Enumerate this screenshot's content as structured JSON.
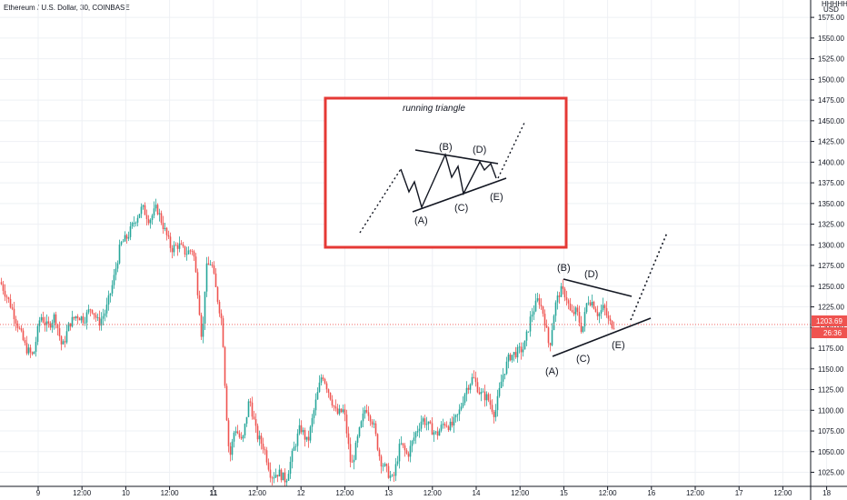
{
  "header": {
    "symbol_line": "Ethereum / U.S. Dollar, 30, COINBASE",
    "currency_top": "HHHHHD",
    "currency": "USD"
  },
  "colors": {
    "up": "#26a69a",
    "down": "#ef5350",
    "price_line": "#ef5350",
    "box": "#e53935",
    "grid": "#eef0f4"
  },
  "chart_data": {
    "type": "candlestick",
    "y_ticks": [
      1575,
      1550,
      1525,
      1500,
      1475,
      1450,
      1425,
      1400,
      1375,
      1350,
      1325,
      1300,
      1275,
      1250,
      1225,
      1200,
      1175,
      1150,
      1125,
      1100,
      1075,
      1050,
      1025
    ],
    "y_tick_labels": [
      "1575.00",
      "1550.00",
      "1525.00",
      "1500.00",
      "1475.00",
      "1450.00",
      "1425.00",
      "1400.00",
      "1375.00",
      "1350.00",
      "1325.00",
      "1300.00",
      "1275.00",
      "1250.00",
      "1225.00",
      "1200.00",
      "1175.00",
      "1150.00",
      "1125.00",
      "1100.00",
      "1075.00",
      "1050.00",
      "1025.00"
    ],
    "ylim": [
      1008,
      1596
    ],
    "x_ticks": [
      "9",
      "12:00",
      "10",
      "12:00",
      "11",
      "12:00",
      "12",
      "12:00",
      "13",
      "12:00",
      "14",
      "12:00",
      "15",
      "12:00",
      "16",
      "12:00",
      "17",
      "12:00",
      "18"
    ],
    "current_price": "1203.69",
    "countdown": "26:36",
    "price_path": [
      [
        0,
        1255
      ],
      [
        12,
        1225
      ],
      [
        20,
        1200
      ],
      [
        28,
        1175
      ],
      [
        36,
        1165
      ],
      [
        44,
        1215
      ],
      [
        52,
        1200
      ],
      [
        60,
        1215
      ],
      [
        68,
        1175
      ],
      [
        76,
        1205
      ],
      [
        84,
        1215
      ],
      [
        92,
        1210
      ],
      [
        100,
        1225
      ],
      [
        108,
        1205
      ],
      [
        116,
        1220
      ],
      [
        124,
        1255
      ],
      [
        132,
        1300
      ],
      [
        140,
        1310
      ],
      [
        148,
        1330
      ],
      [
        156,
        1345
      ],
      [
        164,
        1330
      ],
      [
        172,
        1345
      ],
      [
        180,
        1320
      ],
      [
        188,
        1295
      ],
      [
        196,
        1300
      ],
      [
        204,
        1290
      ],
      [
        212,
        1295
      ],
      [
        218,
        1235
      ],
      [
        222,
        1180
      ],
      [
        226,
        1270
      ],
      [
        232,
        1280
      ],
      [
        238,
        1240
      ],
      [
        244,
        1205
      ],
      [
        248,
        1110
      ],
      [
        252,
        1040
      ],
      [
        258,
        1080
      ],
      [
        266,
        1060
      ],
      [
        274,
        1115
      ],
      [
        282,
        1070
      ],
      [
        290,
        1055
      ],
      [
        298,
        1020
      ],
      [
        306,
        1025
      ],
      [
        314,
        1015
      ],
      [
        322,
        1050
      ],
      [
        330,
        1080
      ],
      [
        338,
        1060
      ],
      [
        346,
        1105
      ],
      [
        354,
        1145
      ],
      [
        362,
        1120
      ],
      [
        370,
        1095
      ],
      [
        378,
        1100
      ],
      [
        386,
        1030
      ],
      [
        394,
        1070
      ],
      [
        402,
        1105
      ],
      [
        410,
        1085
      ],
      [
        418,
        1040
      ],
      [
        426,
        1025
      ],
      [
        432,
        1015
      ],
      [
        440,
        1060
      ],
      [
        448,
        1045
      ],
      [
        456,
        1070
      ],
      [
        464,
        1090
      ],
      [
        472,
        1080
      ],
      [
        480,
        1070
      ],
      [
        488,
        1085
      ],
      [
        496,
        1080
      ],
      [
        504,
        1095
      ],
      [
        512,
        1125
      ],
      [
        520,
        1140
      ],
      [
        528,
        1120
      ],
      [
        536,
        1115
      ],
      [
        544,
        1095
      ],
      [
        552,
        1140
      ],
      [
        560,
        1165
      ],
      [
        568,
        1170
      ],
      [
        576,
        1175
      ],
      [
        584,
        1215
      ],
      [
        592,
        1235
      ],
      [
        598,
        1215
      ],
      [
        604,
        1175
      ],
      [
        610,
        1225
      ],
      [
        616,
        1245
      ],
      [
        622,
        1240
      ],
      [
        628,
        1215
      ],
      [
        634,
        1220
      ],
      [
        640,
        1195
      ],
      [
        646,
        1235
      ],
      [
        652,
        1230
      ],
      [
        658,
        1215
      ],
      [
        664,
        1225
      ],
      [
        670,
        1205
      ],
      [
        676,
        1203.69
      ]
    ],
    "wave_labels": [
      "(A)",
      "(B)",
      "(C)",
      "(D)",
      "(E)"
    ],
    "inset_title": "running triangle",
    "inset_labels": [
      "(A)",
      "(B)",
      "(C)",
      "(D)",
      "(E)"
    ]
  }
}
